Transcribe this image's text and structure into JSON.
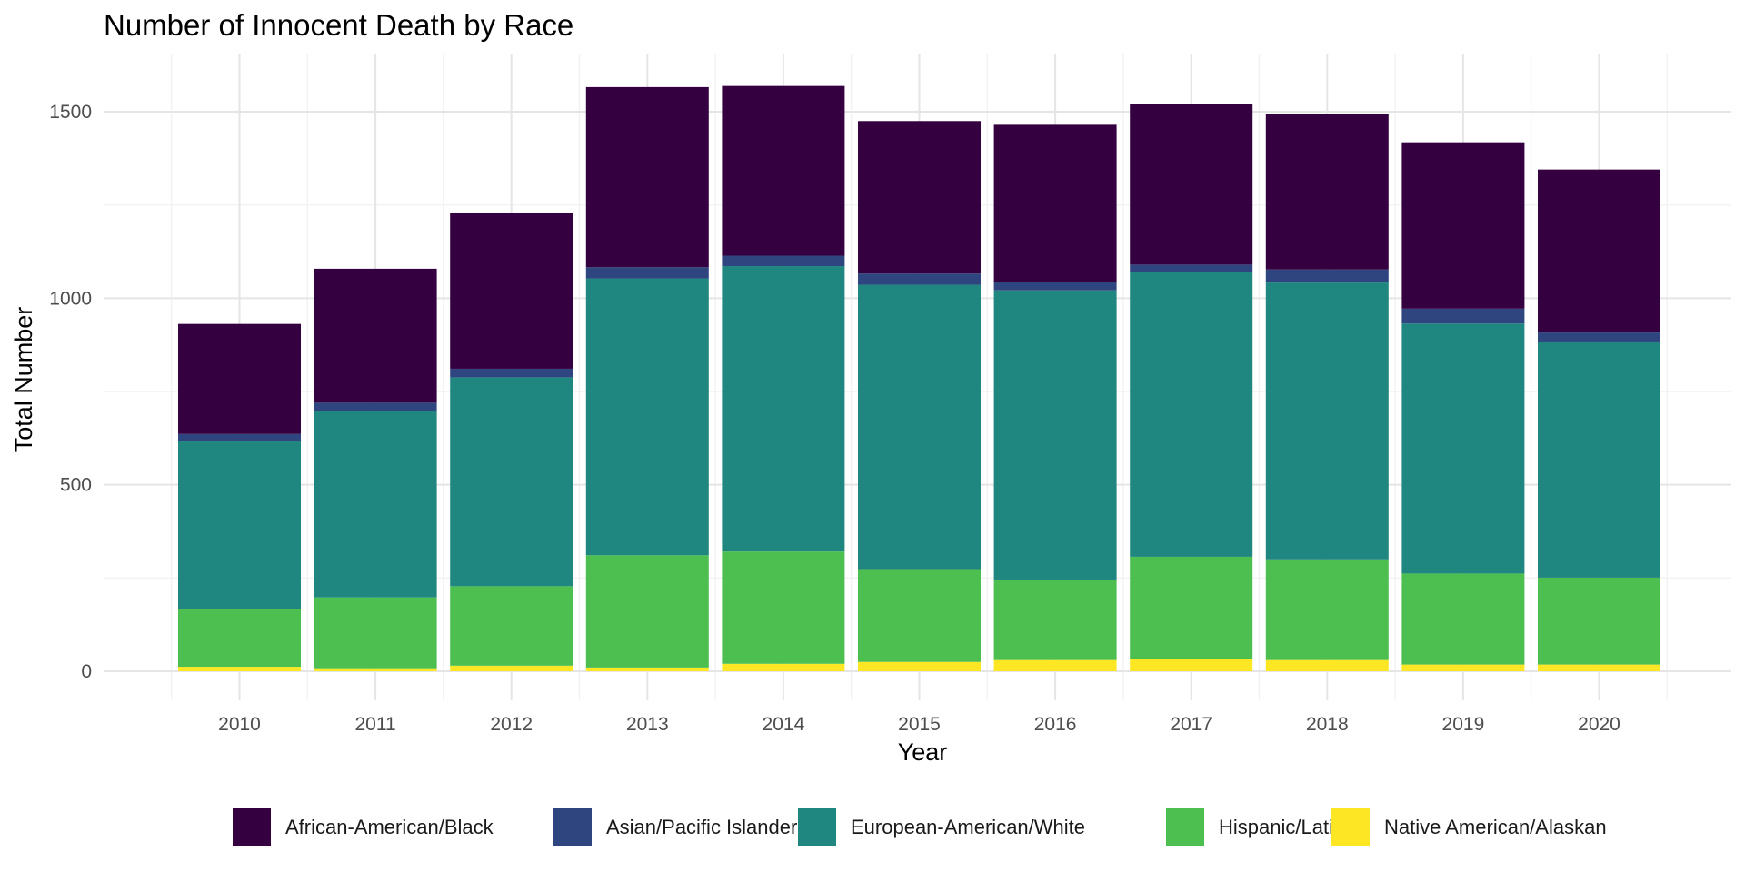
{
  "chart_data": {
    "type": "bar",
    "stacked": true,
    "title": "Number of Innocent Death by Race",
    "xlabel": "Year",
    "ylabel": "Total Number",
    "categories": [
      "2010",
      "2011",
      "2012",
      "2013",
      "2014",
      "2015",
      "2016",
      "2017",
      "2018",
      "2019",
      "2020"
    ],
    "ylim": [
      0,
      1600
    ],
    "yticks": [
      0,
      500,
      1000,
      1500
    ],
    "grid": true,
    "legend_position": "bottom",
    "series": [
      {
        "name": "Native American/Alaskan",
        "color": "#fde725",
        "values": [
          12,
          8,
          15,
          10,
          20,
          25,
          30,
          32,
          30,
          18,
          18
        ]
      },
      {
        "name": "Hispanic/Latino",
        "color": "#4dbf51",
        "values": [
          156,
          190,
          213,
          301,
          301,
          249,
          216,
          275,
          270,
          244,
          233
        ]
      },
      {
        "name": "European-American/White",
        "color": "#208680",
        "values": [
          448,
          500,
          560,
          742,
          765,
          762,
          775,
          763,
          742,
          670,
          633
        ]
      },
      {
        "name": "Asian/Pacific Islander",
        "color": "#2f4580",
        "values": [
          20,
          22,
          23,
          30,
          28,
          30,
          22,
          20,
          35,
          40,
          24
        ]
      },
      {
        "name": "African-American/Black",
        "color": "#35003f",
        "values": [
          295,
          359,
          418,
          483,
          455,
          409,
          422,
          430,
          418,
          446,
          437
        ]
      }
    ],
    "legend_order": [
      "African-American/Black",
      "Asian/Pacific Islander",
      "European-American/White",
      "Hispanic/Latino",
      "Native American/Alaskan"
    ]
  }
}
